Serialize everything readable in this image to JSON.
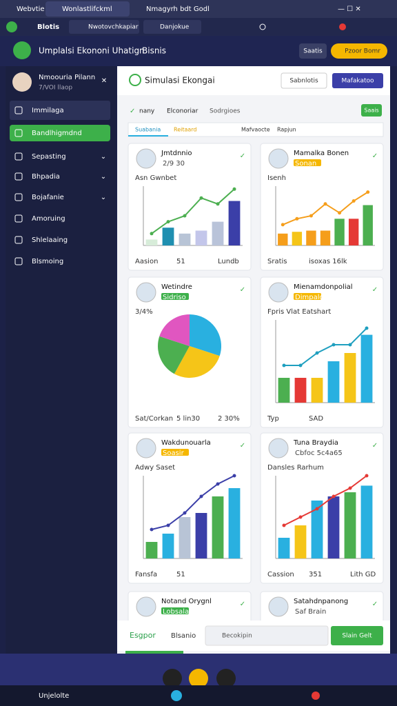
{
  "browser": {
    "tabs": [
      "Webvtie",
      "Wonlastlifckml",
      "Nmagyrh bdt Godl"
    ],
    "toolbar_title": "Blotis",
    "toolbar_tabs": [
      "Nwotovchkapiar",
      "Danjokue"
    ]
  },
  "header": {
    "title": "Umplalsi Ekononi Uhatign",
    "subtitle": "Bisnis",
    "button_secondary": "Saatis",
    "button_primary": "Pzoor Bomr"
  },
  "sidebar": {
    "user_name": "Nmoouria Pilann",
    "user_sub": "7/VOI llaop",
    "items": [
      "Immilaga",
      "Bandlhigmdnd",
      "Sepasting",
      "Bhpadia",
      "Bojafanie",
      "Amoruing",
      "Shlelaaing",
      "Blsmoing"
    ]
  },
  "main": {
    "title": "Simulasi Ekongai",
    "button_1": "Sabnlotis",
    "button_2": "Mafakatoo",
    "filters": [
      "nany",
      "Elconoriar",
      "Sodrgioes"
    ],
    "filter_button": "Saais",
    "tabs": [
      "Suabania",
      "Reitaard",
      "Mafvaocte",
      "Rapjun"
    ]
  },
  "cards": [
    {
      "title": "Jmtdnnio",
      "subtitle": "2/9 30",
      "caption": "Asn Gwnbet",
      "chart": {
        "type": "bar-line",
        "ylim": [
          0,
          10
        ],
        "values": [
          1,
          3,
          2,
          2.5,
          4,
          7.5
        ],
        "colors": [
          "#d7ecd9",
          "#1f8fb0",
          "#b8c4d6",
          "#c3c6ea",
          "#b9c3d9",
          "#3b3fa8"
        ],
        "line": [
          2,
          4,
          5,
          8,
          7,
          9.5
        ],
        "line_color": "#4caf50"
      },
      "footer": [
        "Aasion",
        "51",
        "Lundb"
      ]
    },
    {
      "title": "Mamalka Bonen",
      "subtitle": "Sonan",
      "caption": "Isenh",
      "chart": {
        "type": "bar-line",
        "ylim": [
          0,
          10
        ],
        "values": [
          2,
          2.3,
          2.5,
          2.5,
          4.5,
          4.5,
          6.8
        ],
        "colors": [
          "#f59e1b",
          "#f5c518",
          "#f59e1b",
          "#f59e1b",
          "#4caf50",
          "#e53935",
          "#4caf50"
        ],
        "line": [
          3.5,
          4.5,
          5,
          7,
          5.5,
          7.5,
          9
        ],
        "line_color": "#f59e1b"
      },
      "footer": [
        "Sratis",
        "isoxas 16lk"
      ]
    },
    {
      "title": "Wetindre",
      "subtitle": "Sidriso",
      "caption": "3/4%",
      "chart": {
        "type": "pie",
        "values": [
          30,
          28,
          22,
          20
        ],
        "colors": [
          "#29b0e0",
          "#f5c518",
          "#4caf50",
          "#e056c0"
        ]
      },
      "footer": [
        "Sat/Corkan",
        "5 lin30",
        "2 30%"
      ]
    },
    {
      "title": "Mienamdonpolial",
      "subtitle": "Dimpalde",
      "caption": "Fpris Vlat Eatshart",
      "chart": {
        "type": "bar-line",
        "ylim": [
          0,
          10
        ],
        "values": [
          3,
          3,
          3,
          5,
          6,
          8.2
        ],
        "colors": [
          "#4caf50",
          "#e53935",
          "#f5c518",
          "#29b0e0",
          "#f5c518",
          "#29b0e0"
        ],
        "line": [
          4.5,
          4.5,
          6,
          7,
          7,
          9
        ],
        "line_color": "#1e9fbf"
      },
      "footer": [
        "Typ",
        "SAD"
      ]
    },
    {
      "title": "Wakdunouarla",
      "subtitle": "Soasir",
      "caption": "Adwy Saset",
      "chart": {
        "type": "bar-line",
        "ylim": [
          0,
          10
        ],
        "values": [
          2,
          3,
          5,
          5.5,
          7.5,
          8.5
        ],
        "colors": [
          "#4caf50",
          "#29b0e0",
          "#b8c4d6",
          "#3b3fa8",
          "#4caf50",
          "#29b0e0"
        ],
        "line": [
          3.5,
          4,
          5.5,
          7.5,
          9,
          10
        ],
        "line_color": "#3b3fa8"
      },
      "footer": [
        "Fansfa",
        "51"
      ]
    },
    {
      "title": "Tuna Braydia",
      "subtitle": "Cbfoc 5c4a65",
      "caption": "Dansles Rarhum",
      "chart": {
        "type": "bar-line",
        "ylim": [
          0,
          10
        ],
        "values": [
          2.5,
          4,
          7,
          7.5,
          8,
          8.8
        ],
        "colors": [
          "#29b0e0",
          "#f5c518",
          "#29b0e0",
          "#3b3fa8",
          "#4caf50",
          "#29b0e0"
        ],
        "line": [
          4,
          5,
          6,
          7.5,
          8.5,
          10
        ],
        "line_color": "#e53935"
      },
      "footer": [
        "Cassion",
        "351",
        "Lith GD"
      ]
    },
    {
      "title": "Notand Orygnl",
      "subtitle": "Lobsalan Mal",
      "caption": "",
      "chart": null,
      "footer": []
    },
    {
      "title": "Satahdnpanong",
      "subtitle": "Saf Brain",
      "caption": "",
      "chart": null,
      "footer": []
    }
  ],
  "bottom": {
    "label": "Esgpor",
    "label_2": "Blsanio",
    "search": "Becokipin",
    "button": "Slain Gelt"
  },
  "taskbar": {
    "label": "Unjelolte"
  }
}
